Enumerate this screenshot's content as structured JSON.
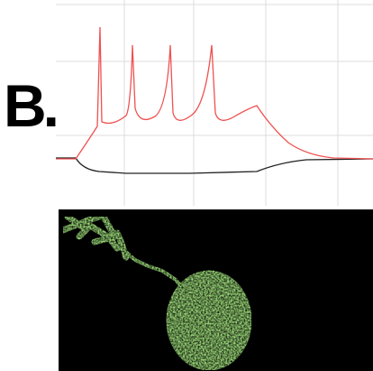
{
  "panel_label": "B."
}
